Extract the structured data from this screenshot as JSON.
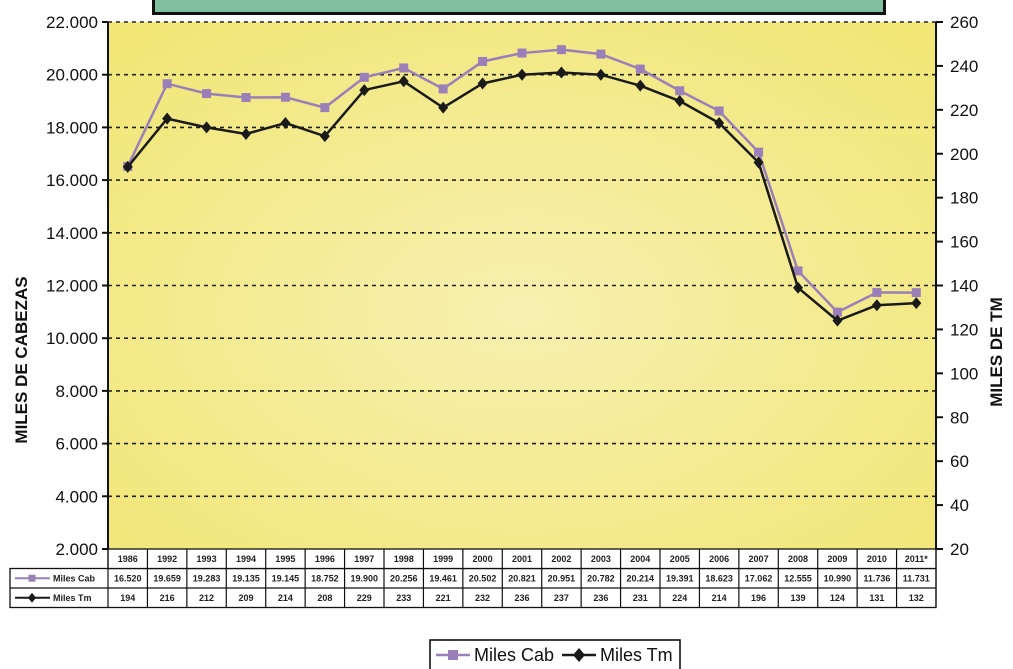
{
  "chart_data": {
    "type": "line",
    "categories": [
      "1986",
      "1992",
      "1993",
      "1994",
      "1995",
      "1996",
      "1997",
      "1998",
      "1999",
      "2000",
      "2001",
      "2002",
      "2003",
      "2004",
      "2005",
      "2006",
      "2007",
      "2008",
      "2009",
      "2010",
      "2011*"
    ],
    "series": [
      {
        "name": "Miles Cab",
        "axis": "left",
        "color": "#9b7fb8",
        "marker": "square",
        "values": [
          16520,
          19659,
          19283,
          19135,
          19145,
          18752,
          19900,
          20256,
          19461,
          20502,
          20821,
          20951,
          20782,
          20214,
          19391,
          18623,
          17062,
          12555,
          10990,
          11736,
          11731
        ],
        "labels": [
          "16.520",
          "19.659",
          "19.283",
          "19.135",
          "19.145",
          "18.752",
          "19.900",
          "20.256",
          "19.461",
          "20.502",
          "20.821",
          "20.951",
          "20.782",
          "20.214",
          "19.391",
          "18.623",
          "17.062",
          "12.555",
          "10.990",
          "11.736",
          "11.731"
        ]
      },
      {
        "name": "Miles Tm",
        "axis": "right",
        "color": "#1a1a1a",
        "marker": "diamond",
        "values": [
          194,
          216,
          212,
          209,
          214,
          208,
          229,
          233,
          221,
          232,
          236,
          237,
          236,
          231,
          224,
          214,
          196,
          139,
          124,
          131,
          132
        ],
        "labels": [
          "194",
          "216",
          "212",
          "209",
          "214",
          "208",
          "229",
          "233",
          "221",
          "232",
          "236",
          "237",
          "236",
          "231",
          "224",
          "214",
          "196",
          "139",
          "124",
          "131",
          "132"
        ]
      }
    ],
    "y_left": {
      "label": "MILES DE CABEZAS",
      "lim": [
        2000,
        22000
      ],
      "ticks": [
        "2.000",
        "4.000",
        "6.000",
        "8.000",
        "10.000",
        "12.000",
        "14.000",
        "16.000",
        "18.000",
        "20.000",
        "22.000"
      ]
    },
    "y_right": {
      "label": "MILES DE TM",
      "lim": [
        20,
        260
      ],
      "ticks": [
        "20",
        "40",
        "60",
        "80",
        "100",
        "120",
        "140",
        "160",
        "180",
        "200",
        "220",
        "240",
        "260"
      ]
    },
    "grid": "dashed-horizontal",
    "legend": "bottom-center",
    "data_table": true,
    "colors": {
      "plot_bg": "#f4ec8a",
      "title_band": "#7fbfa0"
    }
  }
}
